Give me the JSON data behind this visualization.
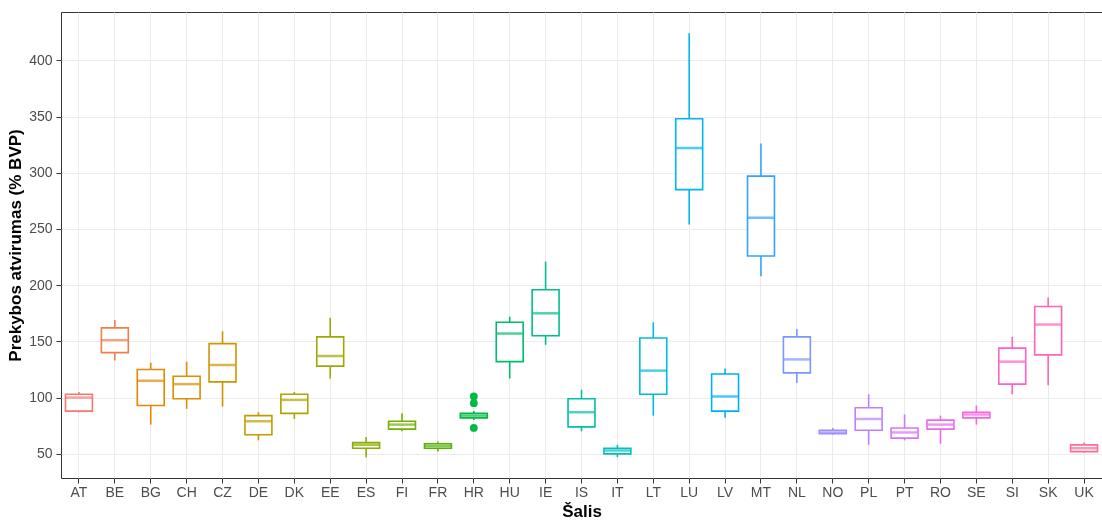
{
  "chart_data": {
    "type": "box",
    "xlabel": "Šalis",
    "ylabel": "Prekybos atvirumas (% BVP)",
    "categories": [
      "AT",
      "BE",
      "BG",
      "CH",
      "CZ",
      "DE",
      "DK",
      "EE",
      "ES",
      "FI",
      "FR",
      "HR",
      "HU",
      "IE",
      "IS",
      "IT",
      "LT",
      "LU",
      "LV",
      "MT",
      "NL",
      "NO",
      "PL",
      "PT",
      "RO",
      "SE",
      "SI",
      "SK",
      "UK"
    ],
    "colors": [
      "#F8766D",
      "#EF7F49",
      "#E58700",
      "#DA8F00",
      "#CD9600",
      "#BF9D00",
      "#AFA300",
      "#9DA800",
      "#89AC00",
      "#72B000",
      "#53B400",
      "#00BA42",
      "#00BE6D",
      "#00BF8C",
      "#00C0A8",
      "#00BFC0",
      "#00BCD6",
      "#00B6EB",
      "#00AEFA",
      "#35A2FF",
      "#7997FF",
      "#9F8CFF",
      "#BF80FF",
      "#D774F8",
      "#EA6AEA",
      "#F763E0",
      "#FF61C9",
      "#FF63B4",
      "#FD6C94"
    ],
    "boxes": [
      {
        "low": 87,
        "q1": 88,
        "median": 100,
        "q3": 103,
        "high": 105
      },
      {
        "low": 133,
        "q1": 140,
        "median": 151,
        "q3": 162,
        "high": 169
      },
      {
        "low": 76,
        "q1": 93,
        "median": 115,
        "q3": 125,
        "high": 131
      },
      {
        "low": 90,
        "q1": 99,
        "median": 112,
        "q3": 119,
        "high": 132
      },
      {
        "low": 92,
        "q1": 114,
        "median": 129,
        "q3": 148,
        "high": 159
      },
      {
        "low": 62,
        "q1": 67,
        "median": 79,
        "q3": 84,
        "high": 87
      },
      {
        "low": 81,
        "q1": 86,
        "median": 98,
        "q3": 103,
        "high": 105
      },
      {
        "low": 117,
        "q1": 128,
        "median": 137,
        "q3": 154,
        "high": 171
      },
      {
        "low": 47,
        "q1": 55,
        "median": 58,
        "q3": 60,
        "high": 65
      },
      {
        "low": 70,
        "q1": 72,
        "median": 76,
        "q3": 79,
        "high": 86
      },
      {
        "low": 52,
        "q1": 55,
        "median": 57,
        "q3": 59,
        "high": 61
      },
      {
        "low": 80,
        "q1": 82,
        "median": 84,
        "q3": 86,
        "high": 88,
        "outliers": [
          73,
          95,
          101
        ]
      },
      {
        "low": 117,
        "q1": 132,
        "median": 157,
        "q3": 167,
        "high": 172
      },
      {
        "low": 147,
        "q1": 155,
        "median": 175,
        "q3": 196,
        "high": 221
      },
      {
        "low": 70,
        "q1": 74,
        "median": 87,
        "q3": 99,
        "high": 107
      },
      {
        "low": 47,
        "q1": 50,
        "median": 53,
        "q3": 55,
        "high": 58
      },
      {
        "low": 84,
        "q1": 103,
        "median": 124,
        "q3": 153,
        "high": 167
      },
      {
        "low": 254,
        "q1": 285,
        "median": 322,
        "q3": 348,
        "high": 424
      },
      {
        "low": 82,
        "q1": 88,
        "median": 101,
        "q3": 121,
        "high": 126
      },
      {
        "low": 208,
        "q1": 226,
        "median": 260,
        "q3": 297,
        "high": 326
      },
      {
        "low": 113,
        "q1": 122,
        "median": 134,
        "q3": 154,
        "high": 161
      },
      {
        "low": 67,
        "q1": 68,
        "median": 69,
        "q3": 71,
        "high": 73
      },
      {
        "low": 58,
        "q1": 71,
        "median": 81,
        "q3": 91,
        "high": 103
      },
      {
        "low": 62,
        "q1": 64,
        "median": 69,
        "q3": 73,
        "high": 85
      },
      {
        "low": 59,
        "q1": 72,
        "median": 76,
        "q3": 80,
        "high": 84
      },
      {
        "low": 76,
        "q1": 82,
        "median": 85,
        "q3": 87,
        "high": 93
      },
      {
        "low": 103,
        "q1": 112,
        "median": 132,
        "q3": 144,
        "high": 154
      },
      {
        "low": 111,
        "q1": 138,
        "median": 165,
        "q3": 181,
        "high": 189
      },
      {
        "low": 51,
        "q1": 52,
        "median": 55,
        "q3": 58,
        "high": 60
      }
    ],
    "ylim": [
      28.5,
      443
    ],
    "yticks": [
      50,
      100,
      150,
      200,
      250,
      300,
      350,
      400
    ],
    "grid": true,
    "legend": false
  }
}
